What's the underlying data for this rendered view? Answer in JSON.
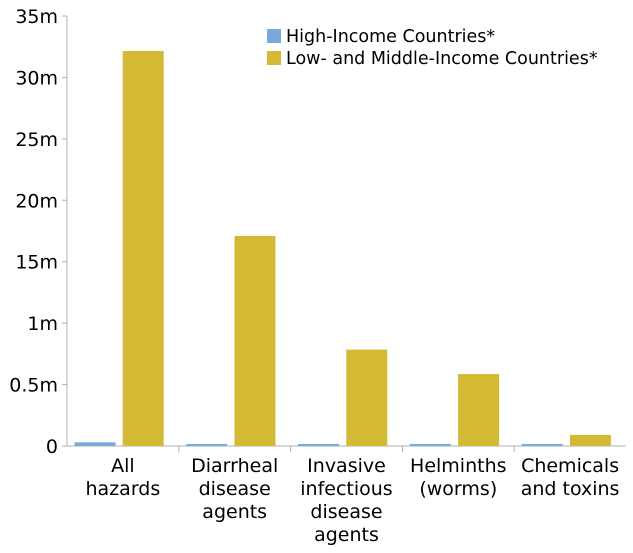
{
  "chart_data": {
    "type": "bar",
    "title": "",
    "xlabel": "",
    "ylabel": "",
    "categories": [
      [
        "All",
        "hazards"
      ],
      [
        "Diarrheal",
        "disease",
        "agents"
      ],
      [
        "Invasive",
        "infectious",
        "disease",
        "agents"
      ],
      [
        "Helminths",
        "(worms)"
      ],
      [
        "Chemicals",
        "and toxins"
      ]
    ],
    "y_ticks": [
      "0",
      "0.5m",
      "1m",
      "15m",
      "20m",
      "25m",
      "30m",
      "35m"
    ],
    "ylim": [
      0,
      7
    ],
    "series": [
      {
        "name": "High-Income Countries*",
        "color": "#7aa7dc",
        "values": [
          0.06,
          0.03,
          0.02,
          0.01,
          0.01
        ]
      },
      {
        "name": "Low- and Middle-Income Countries*",
        "color": "#d4b935",
        "values": [
          6.43,
          3.42,
          1.57,
          1.17,
          0.18
        ]
      }
    ],
    "legend_position": "top-right",
    "grid": false
  }
}
